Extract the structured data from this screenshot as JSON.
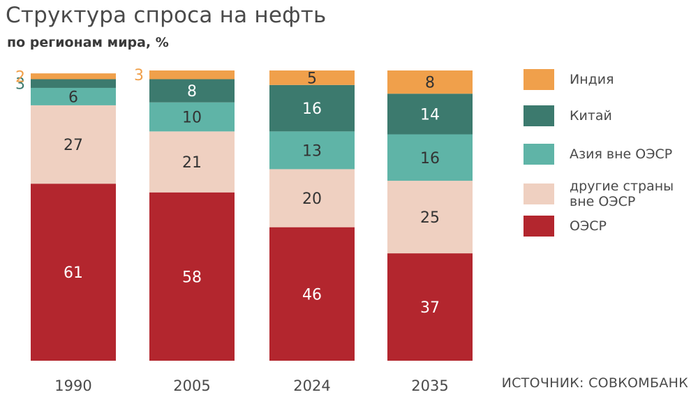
{
  "title": "Структура спроса на нефть",
  "subtitle": "по регионам мира, %",
  "source": "ИСТОЧНИК: СОВКОМБАНК",
  "colors": {
    "india": "#f0a04b",
    "china": "#3c7a6e",
    "asia": "#5fb4a7",
    "other": "#efd0c1",
    "oecd": "#b3262e",
    "label_light": "#ffffff",
    "label_dark": "#333333"
  },
  "chart_data": {
    "type": "bar",
    "stacked": true,
    "categories": [
      "1990",
      "2005",
      "2024",
      "2035"
    ],
    "ylim": [
      0,
      100
    ],
    "series": [
      {
        "key": "oecd",
        "name": "ОЭСР",
        "values": [
          61,
          58,
          46,
          37
        ]
      },
      {
        "key": "other",
        "name": "другие страны вне ОЭСР",
        "values": [
          27,
          21,
          20,
          25
        ]
      },
      {
        "key": "asia",
        "name": "Азия вне ОЭСР",
        "values": [
          6,
          10,
          13,
          16
        ]
      },
      {
        "key": "china",
        "name": "Китай",
        "values": [
          3,
          8,
          16,
          14
        ]
      },
      {
        "key": "india",
        "name": "Индия",
        "values": [
          2,
          3,
          5,
          8
        ]
      }
    ],
    "legend_order": [
      "india",
      "china",
      "asia",
      "other",
      "oecd"
    ],
    "legend": [
      "Индия",
      "Китай",
      "Азия вне ОЭСР",
      "другие страны вне ОЭСР",
      "ОЭСР"
    ],
    "legend_position": "right",
    "grid": false
  }
}
